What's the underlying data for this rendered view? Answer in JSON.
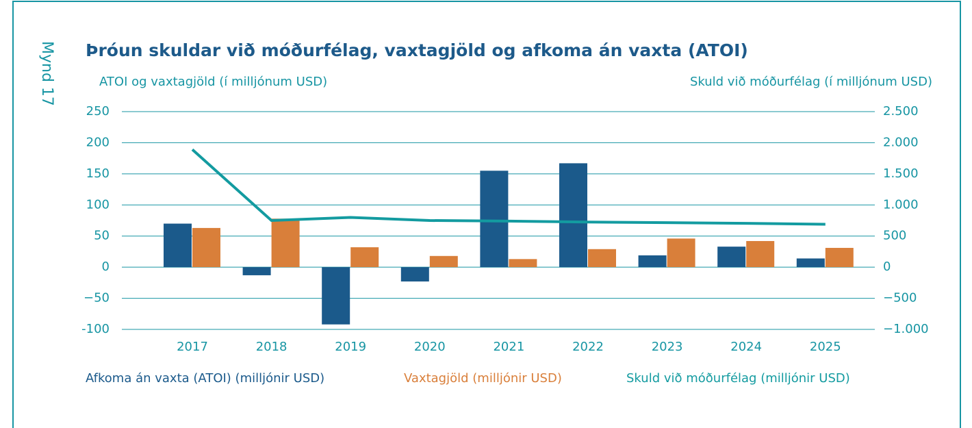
{
  "figure_label": "Mynd 17",
  "chart_data": {
    "type": "bar",
    "title": "Þróun skuldar við móðurfélag, vaxtagjöld og afkoma án vaxta (ATOI)",
    "ylabel": "ATOI og vaxtagjöld (í milljónum USD)",
    "y2label": "Skuld við móðurfélag (í milljónum USD)",
    "categories": [
      "2017",
      "2018",
      "2019",
      "2020",
      "2021",
      "2022",
      "2023",
      "2024",
      "2025"
    ],
    "series": [
      {
        "name": "Afkoma án vaxta (ATOI) (milljónir USD)",
        "color": "#1b5a8b",
        "type": "bar",
        "values": [
          70,
          -13,
          -92,
          -23,
          155,
          167,
          19,
          33,
          14
        ]
      },
      {
        "name": "Vaxtagjöld (milljónir USD)",
        "color": "#d97f3a",
        "type": "bar",
        "values": [
          63,
          78,
          32,
          18,
          13,
          29,
          46,
          42,
          31
        ]
      },
      {
        "name": "Skuld við móðurfélag (milljónir USD)",
        "color": "#139ba0",
        "type": "line",
        "axis": "y2",
        "values": [
          1890,
          750,
          800,
          750,
          740,
          725,
          715,
          705,
          690
        ]
      }
    ],
    "ylim": [
      -100,
      250
    ],
    "yticks": [
      {
        "value": -100,
        "label": "-100"
      },
      {
        "value": -50,
        "label": "−50"
      },
      0,
      50,
      100,
      150,
      200,
      250
    ],
    "y2lim": [
      -1000,
      2500
    ],
    "y2ticks": [
      {
        "value": -1000,
        "label": "−1.000"
      },
      {
        "value": -500,
        "label": "−500"
      },
      0,
      500,
      {
        "value": 1000,
        "label": "1.000"
      },
      {
        "value": 1500,
        "label": "1.500"
      },
      {
        "value": 2000,
        "label": "2.000"
      },
      {
        "value": 2500,
        "label": "2.500"
      }
    ],
    "grid": true,
    "legend": "bottom"
  }
}
